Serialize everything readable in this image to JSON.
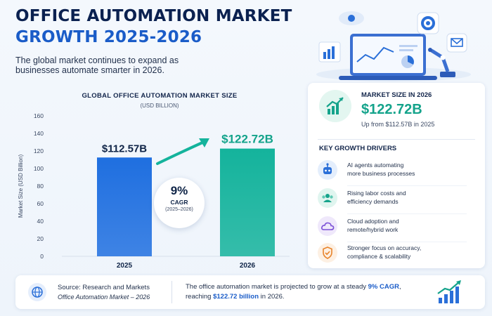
{
  "header": {
    "title_line1": "OFFICE AUTOMATION MARKET",
    "title_line2": "GROWTH 2025-2026",
    "subtitle": "The global market continues to expand as businesses automate smarter in 2026."
  },
  "chart_data": {
    "type": "bar",
    "title": "GLOBAL OFFICE AUTOMATION MARKET SIZE",
    "subtitle": "(USD BILLION)",
    "ylabel": "Market Size (USD Billion)",
    "xlabel": "",
    "categories": [
      "2025",
      "2026"
    ],
    "values": [
      112.57,
      122.72
    ],
    "data_labels": [
      "$112.57B",
      "$122.72B"
    ],
    "ylim": [
      0,
      160
    ],
    "yticks": [
      0,
      20,
      40,
      60,
      80,
      100,
      120,
      140,
      160
    ],
    "colors": [
      "#1f6fe0",
      "#14b39c"
    ],
    "grid": false
  },
  "cagr": {
    "value": "9%",
    "label": "CAGR",
    "years": "(2025–2026)"
  },
  "market_size": {
    "label": "MARKET SIZE IN 2026",
    "value": "$122.72B",
    "note": "Up from $112.57B in 2025"
  },
  "drivers": {
    "title": "KEY GROWTH DRIVERS",
    "items": [
      {
        "icon": "robot-icon",
        "color": "#2a6fd8",
        "bg": "#e4eefc",
        "text": "AI agents automating\nmore business processes"
      },
      {
        "icon": "people-icon",
        "color": "#14a38b",
        "bg": "#e0f5ef",
        "text": "Rising labor costs and\nefficiency demands"
      },
      {
        "icon": "cloud-icon",
        "color": "#7b4fd6",
        "bg": "#efe8fb",
        "text": "Cloud adoption and\nremote/hybrid work"
      },
      {
        "icon": "shield-check-icon",
        "color": "#e8832a",
        "bg": "#fdf0e3",
        "text": "Stronger focus on accuracy,\ncompliance & scalability"
      }
    ]
  },
  "footer": {
    "source": "Source: Research and Markets",
    "source_detail": "Office Automation Market – 2026",
    "message_pre": "The office automation market is projected to grow at a steady ",
    "message_cagr": "9% CAGR",
    "message_mid": ", reaching ",
    "message_value": "$122.72 billion",
    "message_post": " in 2026."
  }
}
